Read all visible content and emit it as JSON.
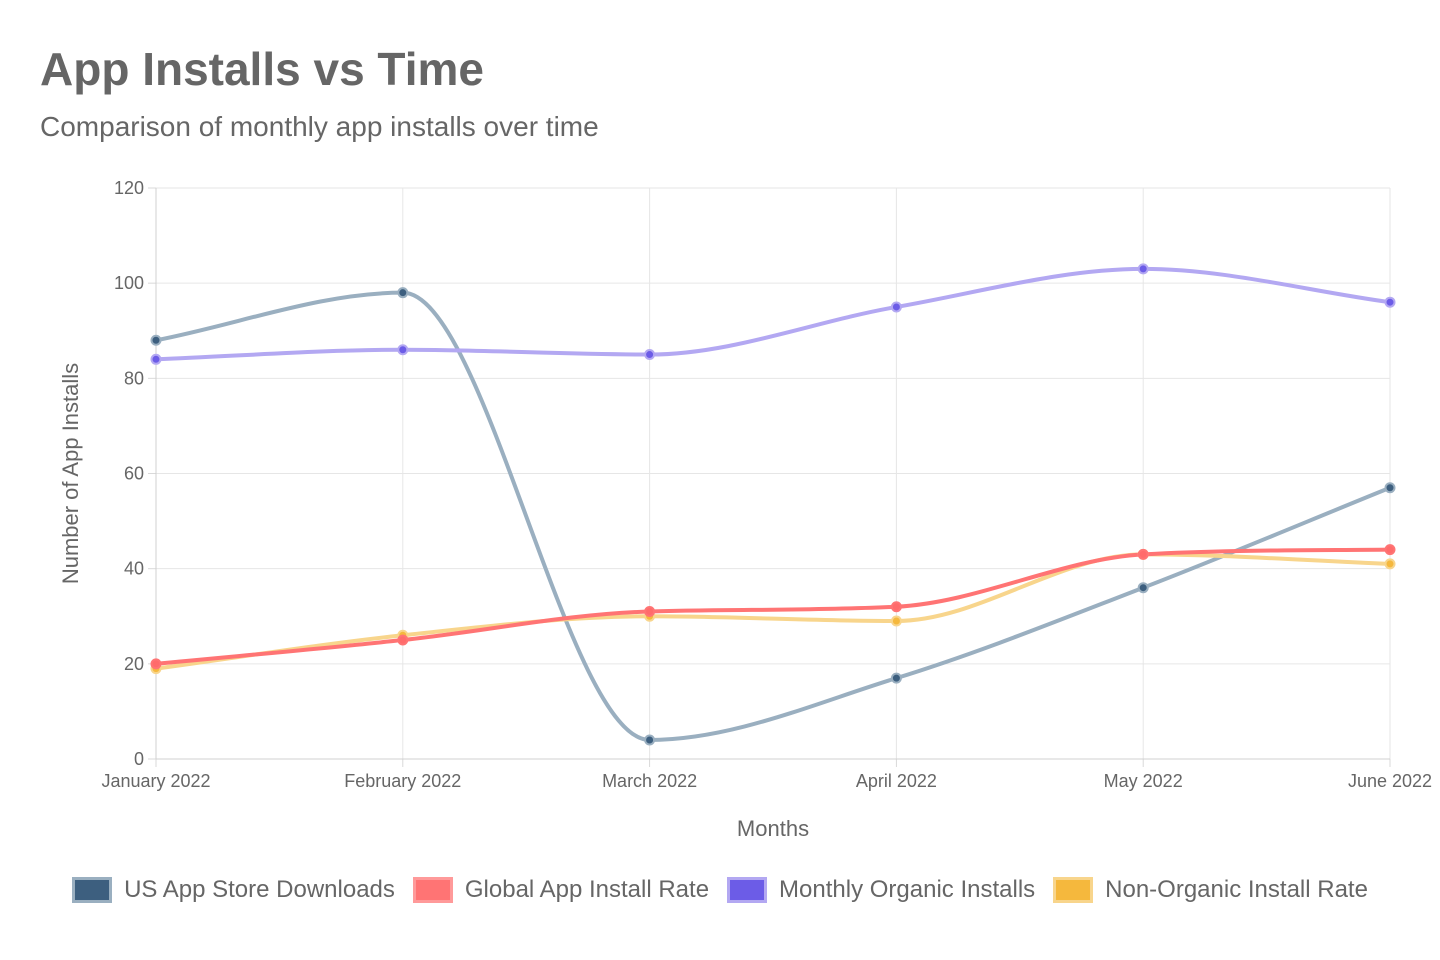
{
  "header": {
    "title": "App Installs vs Time",
    "subtitle": "Comparison of monthly app installs over time"
  },
  "chart_data": {
    "type": "line",
    "title": "App Installs vs Time",
    "subtitle": "Comparison of monthly app installs over time",
    "xlabel": "Months",
    "ylabel": "Number of App Installs",
    "categories": [
      "January 2022",
      "February 2022",
      "March 2022",
      "April 2022",
      "May 2022",
      "June 2022"
    ],
    "ylim": [
      0,
      120
    ],
    "yticks": [
      0,
      20,
      40,
      60,
      80,
      100,
      120
    ],
    "grid": true,
    "legend_position": "bottom",
    "series": [
      {
        "name": "US App Store Downloads",
        "values": [
          88,
          98,
          4,
          17,
          36,
          57
        ],
        "color": "#3d5f7f",
        "line_color": "#9aafc0",
        "swatch_fill": "#3d5f7f",
        "swatch_border": "#9aafc0"
      },
      {
        "name": "Global App Install Rate",
        "values": [
          20,
          25,
          31,
          32,
          43,
          44
        ],
        "color": "#ff6b6b",
        "line_color": "#ff7474",
        "swatch_fill": "#ff7474",
        "swatch_border": "#ff9a9a"
      },
      {
        "name": "Monthly Organic Installs",
        "values": [
          84,
          86,
          85,
          95,
          103,
          96
        ],
        "color": "#6c5ce7",
        "line_color": "#b3a8f2",
        "swatch_fill": "#6c5ce7",
        "swatch_border": "#b3a8f2"
      },
      {
        "name": "Non-Organic Install Rate",
        "values": [
          19,
          26,
          30,
          29,
          43,
          41
        ],
        "color": "#f5b83d",
        "line_color": "#f8d58c",
        "swatch_fill": "#f5b83d",
        "swatch_border": "#f8d58c"
      }
    ]
  }
}
